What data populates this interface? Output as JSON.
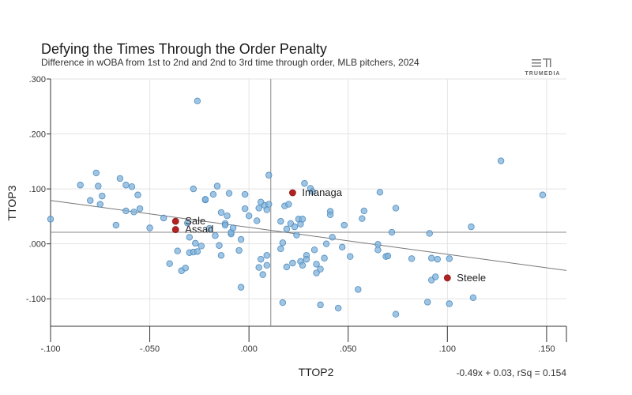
{
  "title": "Defying the Times Through the Order Penalty",
  "subtitle": "Difference in wOBA from 1st to 2nd and 2nd to 3rd time through order, MLB pitchers, 2024",
  "logo_text": "TRUMEDIA",
  "chart_data": {
    "type": "scatter",
    "xlabel": "TTOP2",
    "ylabel": "TTOP3",
    "xlim": [
      -0.1,
      0.16
    ],
    "ylim": [
      -0.15,
      0.3
    ],
    "x_ticks": [
      -0.1,
      -0.05,
      0.0,
      0.05,
      0.1,
      0.15
    ],
    "x_tick_labels": [
      "-.100",
      "-.050",
      ".000",
      ".050",
      ".100",
      ".150"
    ],
    "y_ticks": [
      -0.1,
      0.0,
      0.1,
      0.2,
      0.3
    ],
    "y_tick_labels": [
      "-.100",
      ".000",
      ".100",
      ".200",
      ".300"
    ],
    "grid": true,
    "reference_lines": {
      "x": 0.011,
      "y": 0.021
    },
    "regression": {
      "slope": -0.49,
      "intercept": 0.03,
      "label": "-0.49x + 0.03, rSq = 0.154"
    },
    "point_color": "#7fb2da",
    "point_edge_color": "#4d8bc0",
    "highlight_color": "#b22222",
    "highlighted": [
      {
        "name": "Imanaga",
        "x": 0.022,
        "y": 0.093
      },
      {
        "name": "Sale",
        "x": -0.037,
        "y": 0.041
      },
      {
        "name": "Assad",
        "x": -0.037,
        "y": 0.026
      },
      {
        "name": "Steele",
        "x": 0.1,
        "y": -0.062
      }
    ],
    "points": [
      [
        -0.1,
        0.045
      ],
      [
        -0.085,
        0.107
      ],
      [
        -0.08,
        0.079
      ],
      [
        -0.077,
        0.129
      ],
      [
        -0.076,
        0.105
      ],
      [
        -0.074,
        0.087
      ],
      [
        -0.075,
        0.072
      ],
      [
        -0.067,
        0.034
      ],
      [
        -0.065,
        0.119
      ],
      [
        -0.062,
        0.107
      ],
      [
        -0.059,
        0.104
      ],
      [
        -0.062,
        0.06
      ],
      [
        -0.058,
        0.058
      ],
      [
        -0.056,
        0.089
      ],
      [
        -0.055,
        0.064
      ],
      [
        -0.05,
        0.029
      ],
      [
        -0.043,
        0.047
      ],
      [
        -0.04,
        -0.036
      ],
      [
        -0.036,
        -0.013
      ],
      [
        -0.034,
        -0.049
      ],
      [
        -0.032,
        -0.044
      ],
      [
        -0.031,
        0.038
      ],
      [
        -0.03,
        -0.016
      ],
      [
        -0.03,
        0.012
      ],
      [
        -0.028,
        0.1
      ],
      [
        -0.026,
        0.26
      ],
      [
        -0.028,
        -0.015
      ],
      [
        -0.027,
        0.001
      ],
      [
        -0.026,
        -0.014
      ],
      [
        -0.024,
        -0.004
      ],
      [
        -0.022,
        0.08
      ],
      [
        -0.022,
        0.081
      ],
      [
        -0.02,
        0.028
      ],
      [
        -0.018,
        0.09
      ],
      [
        -0.017,
        0.015
      ],
      [
        -0.016,
        0.105
      ],
      [
        -0.015,
        -0.003
      ],
      [
        -0.014,
        -0.021
      ],
      [
        -0.014,
        0.057
      ],
      [
        -0.012,
        0.037
      ],
      [
        -0.011,
        0.051
      ],
      [
        -0.012,
        0.034
      ],
      [
        -0.01,
        0.092
      ],
      [
        -0.009,
        0.018
      ],
      [
        -0.009,
        0.021
      ],
      [
        -0.008,
        0.029
      ],
      [
        -0.005,
        -0.012
      ],
      [
        -0.004,
        0.008
      ],
      [
        -0.004,
        -0.079
      ],
      [
        -0.002,
        0.09
      ],
      [
        -0.002,
        0.064
      ],
      [
        0.0,
        0.051
      ],
      [
        0.004,
        0.042
      ],
      [
        0.005,
        0.065
      ],
      [
        0.005,
        -0.043
      ],
      [
        0.006,
        -0.028
      ],
      [
        0.006,
        0.076
      ],
      [
        0.007,
        -0.056
      ],
      [
        0.008,
        0.07
      ],
      [
        0.009,
        0.062
      ],
      [
        0.009,
        -0.021
      ],
      [
        0.009,
        -0.039
      ],
      [
        0.01,
        0.072
      ],
      [
        0.01,
        0.125
      ],
      [
        0.016,
        0.041
      ],
      [
        0.017,
        -0.107
      ],
      [
        0.016,
        -0.009
      ],
      [
        0.017,
        0.002
      ],
      [
        0.018,
        0.069
      ],
      [
        0.019,
        0.027
      ],
      [
        0.019,
        -0.042
      ],
      [
        0.02,
        0.072
      ],
      [
        0.021,
        0.037
      ],
      [
        0.022,
        -0.035
      ],
      [
        0.023,
        0.031
      ],
      [
        0.024,
        0.016
      ],
      [
        0.025,
        0.045
      ],
      [
        0.026,
        0.036
      ],
      [
        0.026,
        -0.032
      ],
      [
        0.027,
        0.045
      ],
      [
        0.027,
        -0.039
      ],
      [
        0.028,
        0.11
      ],
      [
        0.029,
        -0.021
      ],
      [
        0.029,
        -0.028
      ],
      [
        0.031,
        0.101
      ],
      [
        0.032,
        0.095
      ],
      [
        0.033,
        -0.011
      ],
      [
        0.034,
        -0.037
      ],
      [
        0.034,
        -0.053
      ],
      [
        0.036,
        -0.046
      ],
      [
        0.036,
        -0.111
      ],
      [
        0.038,
        -0.026
      ],
      [
        0.039,
        0.0
      ],
      [
        0.041,
        0.059
      ],
      [
        0.041,
        0.053
      ],
      [
        0.042,
        0.012
      ],
      [
        0.045,
        -0.117
      ],
      [
        0.047,
        -0.006
      ],
      [
        0.048,
        0.034
      ],
      [
        0.051,
        -0.023
      ],
      [
        0.055,
        -0.083
      ],
      [
        0.057,
        0.046
      ],
      [
        0.058,
        0.06
      ],
      [
        0.065,
        -0.001
      ],
      [
        0.065,
        -0.011
      ],
      [
        0.066,
        0.094
      ],
      [
        0.069,
        -0.023
      ],
      [
        0.07,
        -0.022
      ],
      [
        0.072,
        0.021
      ],
      [
        0.074,
        -0.128
      ],
      [
        0.074,
        0.065
      ],
      [
        0.082,
        -0.027
      ],
      [
        0.09,
        -0.106
      ],
      [
        0.091,
        0.019
      ],
      [
        0.092,
        -0.026
      ],
      [
        0.092,
        -0.066
      ],
      [
        0.094,
        -0.06
      ],
      [
        0.095,
        -0.028
      ],
      [
        0.101,
        -0.109
      ],
      [
        0.101,
        -0.027
      ],
      [
        0.112,
        0.031
      ],
      [
        0.113,
        -0.098
      ],
      [
        0.127,
        0.151
      ],
      [
        0.148,
        0.089
      ]
    ]
  }
}
